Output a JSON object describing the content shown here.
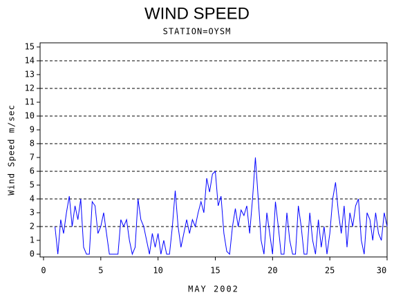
{
  "chart_data": {
    "type": "line",
    "title": "WIND SPEED",
    "subtitle": "STATION=OYSM",
    "x_label": "MAY 2002",
    "y_label": "Wind Speed m/sec",
    "x": [
      1,
      1.25,
      1.5,
      1.75,
      2,
      2.25,
      2.5,
      2.75,
      3,
      3.25,
      3.5,
      3.75,
      4,
      4.25,
      4.5,
      4.75,
      5,
      5.25,
      5.5,
      5.75,
      6,
      6.25,
      6.5,
      6.75,
      7,
      7.25,
      7.5,
      7.75,
      8,
      8.25,
      8.5,
      8.75,
      9,
      9.25,
      9.5,
      9.75,
      10,
      10.25,
      10.5,
      10.75,
      11,
      11.25,
      11.5,
      11.75,
      12,
      12.25,
      12.5,
      12.75,
      13,
      13.25,
      13.5,
      13.75,
      14,
      14.25,
      14.5,
      14.75,
      15,
      15.25,
      15.5,
      15.75,
      16,
      16.25,
      16.5,
      16.75,
      17,
      17.25,
      17.5,
      17.75,
      18,
      18.25,
      18.5,
      18.75,
      19,
      19.25,
      19.5,
      19.75,
      20,
      20.25,
      20.5,
      20.75,
      21,
      21.25,
      21.5,
      21.75,
      22,
      22.25,
      22.5,
      22.75,
      23,
      23.25,
      23.5,
      23.75,
      24,
      24.25,
      24.5,
      24.75,
      25,
      25.25,
      25.5,
      25.75,
      26,
      26.25,
      26.5,
      26.75,
      27,
      27.25,
      27.5,
      27.75,
      28,
      28.25,
      28.5,
      28.75,
      29,
      29.25,
      29.5,
      29.75,
      30
    ],
    "series": [
      {
        "name": "Wind Speed",
        "color": "#0000ff",
        "values": [
          2.0,
          0,
          2.5,
          1.5,
          3.0,
          4.2,
          2.0,
          3.5,
          2.5,
          4.0,
          0.5,
          0,
          0,
          3.8,
          3.5,
          1.5,
          2.0,
          3.0,
          1.5,
          0,
          0,
          0,
          0,
          2.5,
          2.0,
          2.5,
          1.0,
          0,
          0.5,
          4.0,
          2.5,
          2.0,
          1.0,
          0,
          1.5,
          0.5,
          1.5,
          0,
          1.0,
          0,
          0,
          2.0,
          4.6,
          2.0,
          0.5,
          1.5,
          2.5,
          1.5,
          2.5,
          2.0,
          3.0,
          3.8,
          3.0,
          5.5,
          4.5,
          5.8,
          6.0,
          3.5,
          4.2,
          1.5,
          0.2,
          0,
          2.0,
          3.3,
          2.0,
          3.2,
          2.8,
          3.5,
          1.5,
          4.0,
          7.0,
          4.0,
          1.0,
          0,
          3.0,
          1.5,
          0,
          3.8,
          2.0,
          0,
          0,
          3.0,
          1.0,
          0,
          0,
          3.5,
          2.0,
          0,
          0,
          3.0,
          1.0,
          0,
          2.5,
          0.5,
          2.0,
          0,
          1.5,
          4.0,
          5.2,
          3.0,
          1.5,
          3.5,
          0.5,
          3.0,
          2.0,
          3.5,
          4.0,
          1.0,
          0,
          3.0,
          2.5,
          1.0,
          3.0,
          1.5,
          1.0,
          3.0,
          2.0
        ]
      }
    ],
    "xlim": [
      -0.3,
      30.0
    ],
    "ylim": [
      -0.2,
      15.3
    ],
    "xticks": [
      0,
      5,
      10,
      15,
      20,
      25,
      30
    ],
    "yticks": [
      0,
      1,
      2,
      3,
      4,
      5,
      6,
      7,
      8,
      9,
      10,
      11,
      12,
      13,
      14,
      15
    ],
    "ygrid": [
      2,
      4,
      6,
      8,
      10,
      12,
      14
    ]
  }
}
